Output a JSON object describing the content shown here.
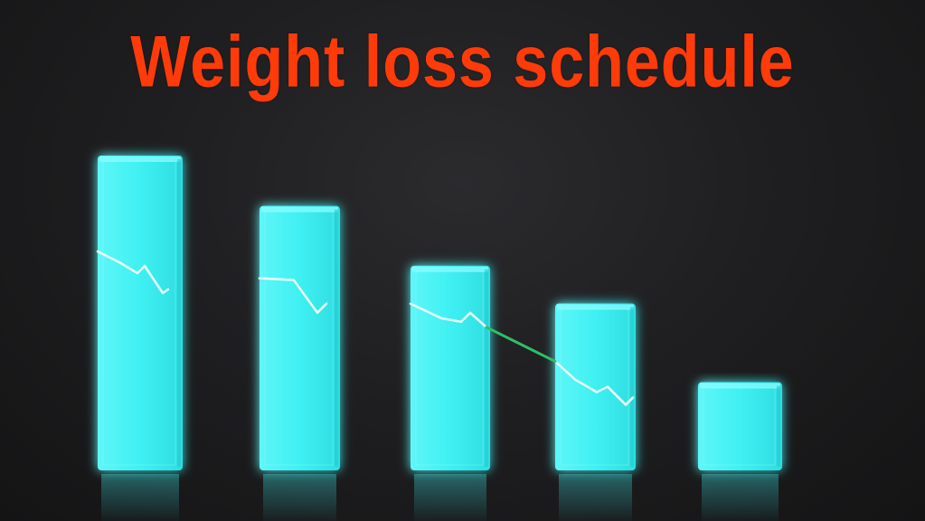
{
  "title": "Weight loss schedule",
  "colors": {
    "title": "#ff3b0a",
    "bar": "#3ff0f2",
    "bar_light": "#8ffcff",
    "bar_dark": "#20c7cc",
    "trend_line": "#e8ffff",
    "trend_bridge": "#2fbf6a",
    "background": "#1b1b1d"
  },
  "chart_data": {
    "type": "bar",
    "categories": [
      "",
      "",
      "",
      "",
      ""
    ],
    "values": [
      100,
      84,
      65,
      53,
      28
    ],
    "ylim": [
      0,
      100
    ],
    "grid": false,
    "legend": "none",
    "trend_line": true
  }
}
